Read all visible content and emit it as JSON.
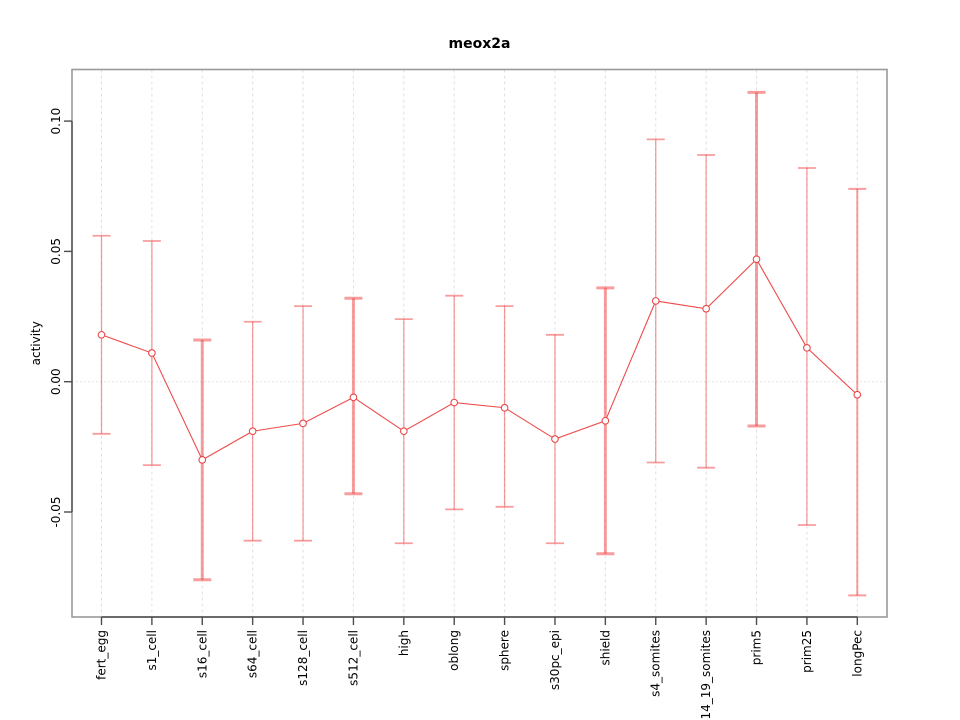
{
  "page": {
    "background": "#ffffff"
  },
  "chart_data": {
    "type": "line",
    "title": "meox2a",
    "xlabel": "",
    "ylabel": "activity",
    "legend": "none",
    "grid": {
      "vertical_dashed": true,
      "zero_line_dotted": true
    },
    "categories": [
      "fert_egg",
      "s1_cell",
      "s16_cell",
      "s64_cell",
      "s128_cell",
      "s512_cell",
      "high",
      "oblong",
      "sphere",
      "s30pc_epi",
      "shield",
      "s4_somites",
      "s14_19_somites",
      "prim5",
      "prim25",
      "longPec"
    ],
    "series": [
      {
        "name": "activity",
        "values": [
          0.018,
          0.011,
          -0.03,
          -0.019,
          -0.016,
          -0.006,
          -0.019,
          -0.008,
          -0.01,
          -0.022,
          -0.015,
          0.031,
          0.028,
          0.047,
          0.013,
          -0.005
        ],
        "lower": [
          -0.02,
          -0.032,
          -0.076,
          -0.061,
          -0.061,
          -0.043,
          -0.062,
          -0.049,
          -0.048,
          -0.062,
          -0.066,
          -0.031,
          -0.033,
          -0.017,
          -0.055,
          -0.082
        ],
        "upper": [
          0.056,
          0.054,
          0.016,
          0.023,
          0.029,
          0.032,
          0.024,
          0.033,
          0.029,
          0.018,
          0.036,
          0.093,
          0.087,
          0.111,
          0.082,
          0.074
        ]
      }
    ],
    "error_bar_linewidths": [
      1.3,
      1.3,
      3,
      1.3,
      1.3,
      3,
      1.3,
      1.3,
      1.3,
      1.3,
      3,
      1.3,
      1.3,
      3,
      1.3,
      2
    ],
    "yticks": {
      "values": [
        0.1,
        0.05,
        0.0,
        -0.05
      ],
      "labels": [
        "0.10",
        "0.05",
        "0.00",
        "-0.05"
      ]
    },
    "ylim": [
      -0.09,
      0.119
    ],
    "colors": {
      "error_bar": "rgba(240,76,76,0.55)",
      "line": "#ee4b4b",
      "point_stroke": "#e84848",
      "point_fill": "#ffffff",
      "grid": "#e0e0e0",
      "zero_line": "#e2e2e2",
      "box": "#9a9a9a",
      "axis": "#4d4d4d",
      "text": "#000000"
    }
  }
}
